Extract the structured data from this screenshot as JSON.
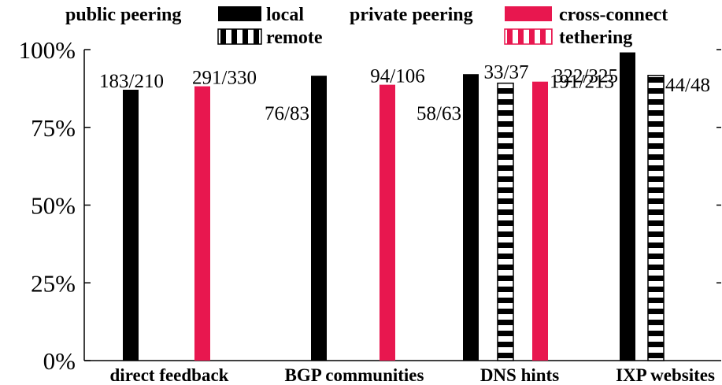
{
  "colors": {
    "public": "#000000",
    "private": "#e8174f",
    "stripe_fill": "#ffffff"
  },
  "legend": {
    "public_group": "public peering",
    "private_group": "private peering",
    "items": [
      {
        "key": "local",
        "label": "local",
        "group": "public",
        "pattern": "solid",
        "color": "#000000"
      },
      {
        "key": "remote",
        "label": "remote",
        "group": "public",
        "pattern": "striped",
        "color": "#000000"
      },
      {
        "key": "cross-connect",
        "label": "cross-connect",
        "group": "private",
        "pattern": "solid",
        "color": "#e8174f"
      },
      {
        "key": "tethering",
        "label": "tethering",
        "group": "private",
        "pattern": "striped",
        "color": "#e8174f"
      }
    ]
  },
  "chart_data": {
    "type": "bar",
    "categories": [
      "direct feedback",
      "BGP communities",
      "DNS hints",
      "IXP websites"
    ],
    "ylim": [
      0,
      100
    ],
    "yticks": [
      "0%",
      "25%",
      "50%",
      "75%",
      "100%"
    ],
    "series": [
      {
        "name": "local",
        "values": [
          87.1,
          91.6,
          92.1,
          99.1
        ],
        "labels": [
          "183/210",
          "76/83",
          "58/63",
          "322/325"
        ]
      },
      {
        "name": "remote",
        "values": [
          null,
          null,
          89.2,
          91.7
        ],
        "labels": [
          "",
          "",
          "33/37",
          "44/48"
        ]
      },
      {
        "name": "cross-connect",
        "values": [
          88.2,
          88.7,
          89.7,
          null
        ],
        "labels": [
          "291/330",
          "94/106",
          "191/213",
          ""
        ]
      },
      {
        "name": "tethering",
        "values": [
          null,
          null,
          null,
          null
        ],
        "labels": [
          "",
          "",
          "",
          ""
        ]
      }
    ],
    "grid": false,
    "legend_position": "top"
  }
}
